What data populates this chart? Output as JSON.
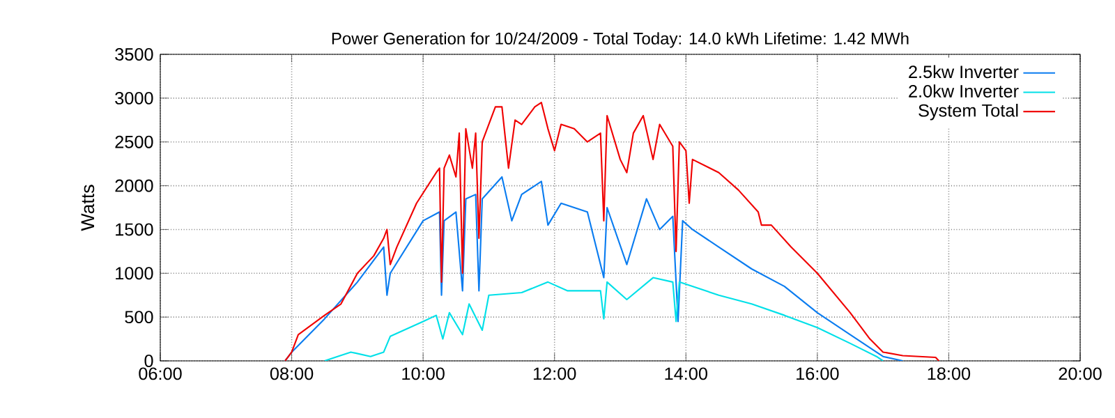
{
  "chart_data": {
    "type": "line",
    "title": "Power Generation for 10/24/2009 - Total Today: 14.0 kWh   Lifetime: 1.42 MWh",
    "ylabel": "Watts",
    "xlim": [
      6,
      20
    ],
    "ylim": [
      0,
      3500
    ],
    "xticks": [
      {
        "value": 6,
        "label": "06:00"
      },
      {
        "value": 8,
        "label": "08:00"
      },
      {
        "value": 10,
        "label": "10:00"
      },
      {
        "value": 12,
        "label": "12:00"
      },
      {
        "value": 14,
        "label": "14:00"
      },
      {
        "value": 16,
        "label": "16:00"
      },
      {
        "value": 18,
        "label": "18:00"
      },
      {
        "value": 20,
        "label": "20:00"
      }
    ],
    "yticks": [
      0,
      500,
      1000,
      1500,
      2000,
      2500,
      3000,
      3500
    ],
    "grid": true,
    "legend": "top right",
    "marker": "none",
    "line_style": "solid",
    "series": [
      {
        "name": "2.5kw Inverter",
        "color": "#0a7cf0",
        "x": [
          7.9,
          8.0,
          8.5,
          9.0,
          9.25,
          9.4,
          9.45,
          9.5,
          9.75,
          10.0,
          10.25,
          10.28,
          10.32,
          10.5,
          10.6,
          10.65,
          10.8,
          10.85,
          10.9,
          11.2,
          11.35,
          11.5,
          11.8,
          11.9,
          12.1,
          12.5,
          12.75,
          12.8,
          13.1,
          13.4,
          13.6,
          13.8,
          13.88,
          13.95,
          14.1,
          14.5,
          15.0,
          15.5,
          16.0,
          16.5,
          17.0,
          17.3
        ],
        "values": [
          0,
          100,
          480,
          900,
          1150,
          1300,
          750,
          1000,
          1300,
          1600,
          1700,
          750,
          1600,
          1700,
          800,
          1850,
          1900,
          800,
          1850,
          2100,
          1600,
          1900,
          2050,
          1550,
          1800,
          1700,
          950,
          1750,
          1100,
          1850,
          1500,
          1650,
          450,
          1600,
          1500,
          1300,
          1050,
          850,
          550,
          300,
          50,
          0
        ]
      },
      {
        "name": "2.0kw Inverter",
        "color": "#00e0e8",
        "x": [
          8.5,
          8.9,
          9.2,
          9.4,
          9.5,
          10.0,
          10.2,
          10.3,
          10.4,
          10.6,
          10.7,
          10.9,
          11.0,
          11.5,
          11.9,
          12.2,
          12.7,
          12.75,
          12.8,
          13.1,
          13.5,
          13.8,
          13.85,
          13.9,
          14.5,
          15.0,
          15.5,
          16.0,
          16.5,
          16.9,
          17.0
        ],
        "values": [
          0,
          100,
          50,
          100,
          280,
          450,
          520,
          250,
          550,
          300,
          650,
          350,
          750,
          780,
          900,
          800,
          800,
          480,
          900,
          700,
          950,
          900,
          450,
          900,
          750,
          650,
          520,
          380,
          200,
          50,
          0
        ]
      },
      {
        "name": "System Total",
        "color": "#f00000",
        "x": [
          7.9,
          8.0,
          8.1,
          8.5,
          8.75,
          9.0,
          9.25,
          9.4,
          9.45,
          9.5,
          9.6,
          9.9,
          10.2,
          10.25,
          10.28,
          10.32,
          10.4,
          10.5,
          10.55,
          10.6,
          10.65,
          10.75,
          10.8,
          10.85,
          10.9,
          11.0,
          11.1,
          11.2,
          11.3,
          11.4,
          11.5,
          11.7,
          11.8,
          11.9,
          12.0,
          12.1,
          12.3,
          12.5,
          12.7,
          12.75,
          12.8,
          13.0,
          13.1,
          13.2,
          13.35,
          13.5,
          13.6,
          13.8,
          13.85,
          13.9,
          14.0,
          14.05,
          14.1,
          14.5,
          14.8,
          15.1,
          15.15,
          15.3,
          15.6,
          16.0,
          16.5,
          16.8,
          17.0,
          17.3,
          17.8,
          17.85
        ],
        "values": [
          0,
          100,
          300,
          520,
          650,
          1000,
          1200,
          1400,
          1500,
          1100,
          1300,
          1800,
          2150,
          2200,
          900,
          2200,
          2350,
          2100,
          2600,
          1000,
          2650,
          2200,
          2600,
          1400,
          2500,
          2700,
          2900,
          2900,
          2200,
          2750,
          2700,
          2900,
          2950,
          2650,
          2400,
          2700,
          2650,
          2500,
          2600,
          1600,
          2800,
          2300,
          2150,
          2600,
          2800,
          2300,
          2700,
          2450,
          1250,
          2500,
          2400,
          1800,
          2300,
          2150,
          1950,
          1700,
          1550,
          1550,
          1300,
          1000,
          550,
          250,
          100,
          60,
          40,
          0
        ]
      }
    ]
  }
}
